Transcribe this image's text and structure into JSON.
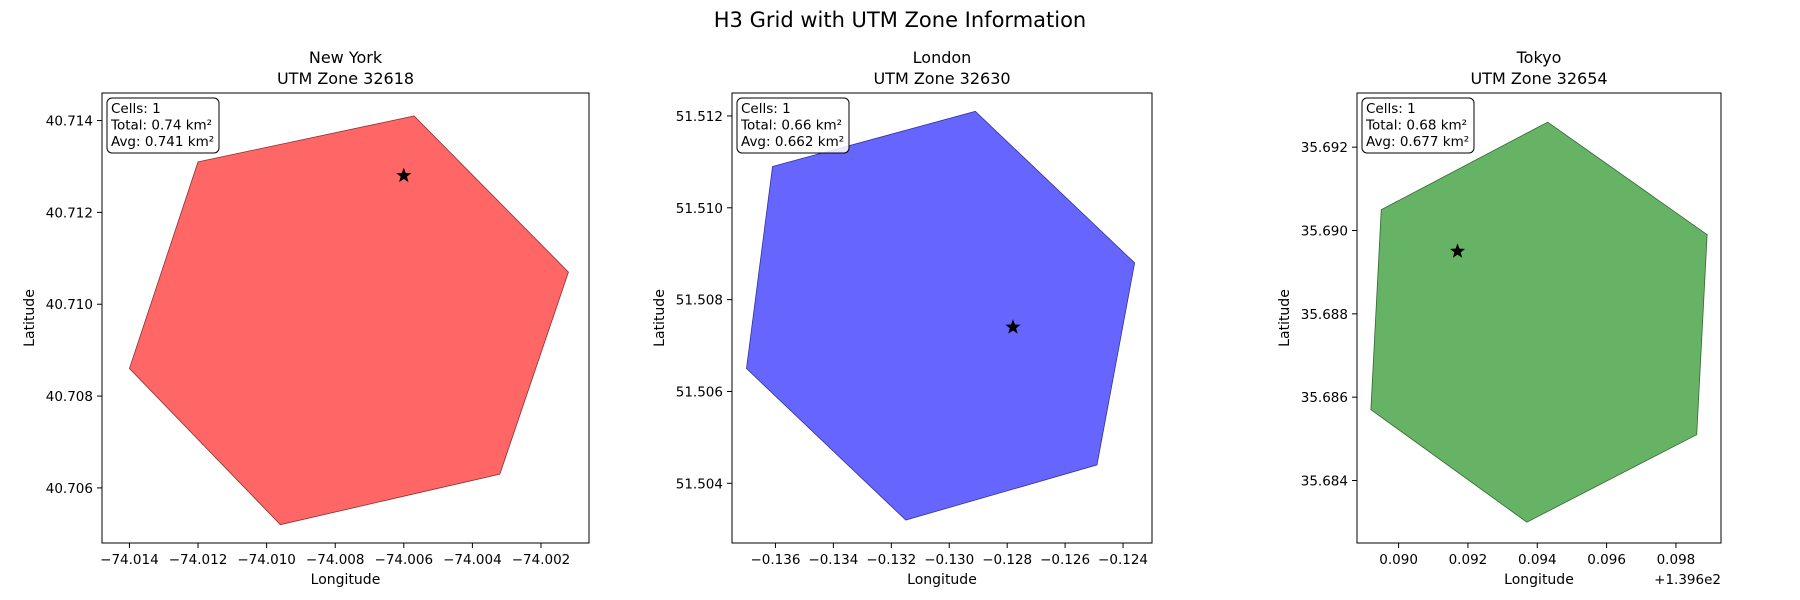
{
  "figure": {
    "title": "H3 Grid with UTM Zone Information"
  },
  "chart_data": [
    {
      "type": "polygon",
      "city": "New York",
      "title_line1": "New York",
      "title_line2": "UTM Zone 32618",
      "xlabel": "Longitude",
      "ylabel": "Latitude",
      "xlim": [
        -74.0148,
        -74.0006
      ],
      "ylim": [
        40.7048,
        40.7146
      ],
      "xticks": [
        -74.014,
        -74.012,
        -74.01,
        -74.008,
        -74.006,
        -74.004,
        -74.002
      ],
      "xtick_labels": [
        "−74.014",
        "−74.012",
        "−74.010",
        "−74.008",
        "−74.006",
        "−74.004",
        "−74.002"
      ],
      "yticks": [
        40.706,
        40.708,
        40.71,
        40.712,
        40.714
      ],
      "ytick_labels": [
        "40.706",
        "40.708",
        "40.710",
        "40.712",
        "40.714"
      ],
      "x_offset_label": "",
      "fill_color": "#ff6666",
      "edge_color": "#8a3030",
      "hexagon": [
        [
          -74.012,
          40.7131
        ],
        [
          -74.0057,
          40.7141
        ],
        [
          -74.0012,
          40.7107
        ],
        [
          -74.0032,
          40.7063
        ],
        [
          -74.0096,
          40.7052
        ],
        [
          -74.014,
          40.7086
        ]
      ],
      "marker": [
        -74.006,
        40.7128
      ],
      "info": {
        "cells": "Cells: 1",
        "total": "Total: 0.74 km²",
        "avg": "Avg: 0.741 km²"
      }
    },
    {
      "type": "polygon",
      "city": "London",
      "title_line1": "London",
      "title_line2": "UTM Zone 32630",
      "xlabel": "Longitude",
      "ylabel": "Latitude",
      "xlim": [
        -0.1375,
        -0.123
      ],
      "ylim": [
        51.5027,
        51.5125
      ],
      "xticks": [
        -0.136,
        -0.134,
        -0.132,
        -0.13,
        -0.128,
        -0.126,
        -0.124
      ],
      "xtick_labels": [
        "−0.136",
        "−0.134",
        "−0.132",
        "−0.130",
        "−0.128",
        "−0.126",
        "−0.124"
      ],
      "yticks": [
        51.504,
        51.506,
        51.508,
        51.51,
        51.512
      ],
      "ytick_labels": [
        "51.504",
        "51.506",
        "51.508",
        "51.510",
        "51.512"
      ],
      "x_offset_label": "",
      "fill_color": "#6666ff",
      "edge_color": "#333399",
      "hexagon": [
        [
          -0.1361,
          51.5109
        ],
        [
          -0.1291,
          51.5121
        ],
        [
          -0.1236,
          51.5088
        ],
        [
          -0.1249,
          51.5044
        ],
        [
          -0.1315,
          51.5032
        ],
        [
          -0.137,
          51.5065
        ]
      ],
      "marker": [
        -0.1278,
        51.5074
      ],
      "info": {
        "cells": "Cells: 1",
        "total": "Total: 0.66 km²",
        "avg": "Avg: 0.662 km²"
      }
    },
    {
      "type": "polygon",
      "city": "Tokyo",
      "title_line1": "Tokyo",
      "title_line2": "UTM Zone 32654",
      "xlabel": "Longitude",
      "ylabel": "Latitude",
      "xlim": [
        139.6888,
        139.6993
      ],
      "ylim": [
        35.6825,
        35.6933
      ],
      "xticks": [
        139.69,
        139.692,
        139.694,
        139.696,
        139.698
      ],
      "xtick_labels": [
        "0.090",
        "0.092",
        "0.094",
        "0.096",
        "0.098"
      ],
      "yticks": [
        35.684,
        35.686,
        35.688,
        35.69,
        35.692
      ],
      "ytick_labels": [
        "35.684",
        "35.686",
        "35.688",
        "35.690",
        "35.692"
      ],
      "x_offset_label": "+1.396e2",
      "fill_color": "#66b366",
      "edge_color": "#336633",
      "hexagon": [
        [
          139.6895,
          35.6905
        ],
        [
          139.6943,
          35.6926
        ],
        [
          139.6989,
          35.6899
        ],
        [
          139.6986,
          35.6851
        ],
        [
          139.6937,
          35.683
        ],
        [
          139.6892,
          35.6857
        ]
      ],
      "marker": [
        139.6917,
        35.6895
      ],
      "info": {
        "cells": "Cells: 1",
        "total": "Total: 0.68 km²",
        "avg": "Avg: 0.677 km²"
      }
    }
  ]
}
